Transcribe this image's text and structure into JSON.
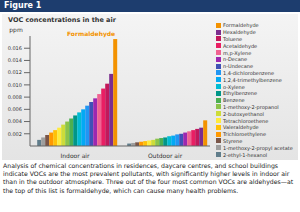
{
  "figure_label": "Figure 1",
  "caption": "Analysis of chemical concentrations in residences, daycare centres, and school buildings indicate VOCs are the most prevalent pollutants, with significantly higher levels in indoor air than in the outdoor atmosphere. Three out of the four most common VOCs are aldehydes—at the top of this list is formaldehyde, which can cause many health problems.",
  "chart_data": {
    "type": "bar",
    "title": "VOC concentrations in the air",
    "y_label": "ppm",
    "annotation": "Formaldehyde",
    "categories": [
      "Indoor air",
      "Outdoor air"
    ],
    "ylim": [
      0,
      0.018
    ],
    "yticks": [
      0.002,
      0.004,
      0.006,
      0.008,
      {
        "value": 0.01,
        "label": "0.010"
      },
      0.012,
      0.014,
      0.016
    ],
    "grid": false,
    "series": [
      {
        "name": "Formaldehyde",
        "color": "#f39200",
        "values": [
          0.0175,
          0.0042
        ]
      },
      {
        "name": "Hexaldehyde",
        "color": "#7b2d8e",
        "values": [
          0.0118,
          0.003
        ]
      },
      {
        "name": "Toluene",
        "color": "#c2185b",
        "values": [
          0.0102,
          0.0028
        ]
      },
      {
        "name": "Acetaldehyde",
        "color": "#e91e63",
        "values": [
          0.0094,
          0.0026
        ]
      },
      {
        "name": "m,p-Xylene",
        "color": "#f06292",
        "values": [
          0.0085,
          0.0024
        ]
      },
      {
        "name": "n-Decane",
        "color": "#9c27b0",
        "values": [
          0.0078,
          0.0022
        ]
      },
      {
        "name": "n-Undecane",
        "color": "#3f51b5",
        "values": [
          0.0072,
          0.002
        ]
      },
      {
        "name": "1,4-dichlorobenzene",
        "color": "#2196f3",
        "values": [
          0.0066,
          0.0019
        ]
      },
      {
        "name": "1,2,4-trimethylbenzene",
        "color": "#03a9f4",
        "values": [
          0.006,
          0.0017
        ]
      },
      {
        "name": "o-Xylene",
        "color": "#00bcd4",
        "values": [
          0.0055,
          0.0016
        ]
      },
      {
        "name": "Ethylbenzene",
        "color": "#009688",
        "values": [
          0.005,
          0.0014
        ]
      },
      {
        "name": "Benzene",
        "color": "#4caf50",
        "values": [
          0.0045,
          0.0013
        ]
      },
      {
        "name": "1-methoxy-2-propanol",
        "color": "#8bc34a",
        "values": [
          0.004,
          0.0012
        ]
      },
      {
        "name": "2-butoxyethanol",
        "color": "#cddc39",
        "values": [
          0.0035,
          0.001
        ]
      },
      {
        "name": "Tetrachloroethene",
        "color": "#ffeb3b",
        "values": [
          0.003,
          0.0009
        ]
      },
      {
        "name": "Valeraldehyde",
        "color": "#ffc107",
        "values": [
          0.0026,
          0.0008
        ]
      },
      {
        "name": "Trichloroethylene",
        "color": "#ff9800",
        "values": [
          0.0022,
          0.0007
        ]
      },
      {
        "name": "Styrene",
        "color": "#795548",
        "values": [
          0.0018,
          0.0006
        ]
      },
      {
        "name": "1-methoxy-2-propyl acetate",
        "color": "#9e9e9e",
        "values": [
          0.0014,
          0.0005
        ]
      },
      {
        "name": "2-ethyl-1-hexanol",
        "color": "#607d8b",
        "values": [
          0.001,
          0.0004
        ]
      }
    ]
  }
}
